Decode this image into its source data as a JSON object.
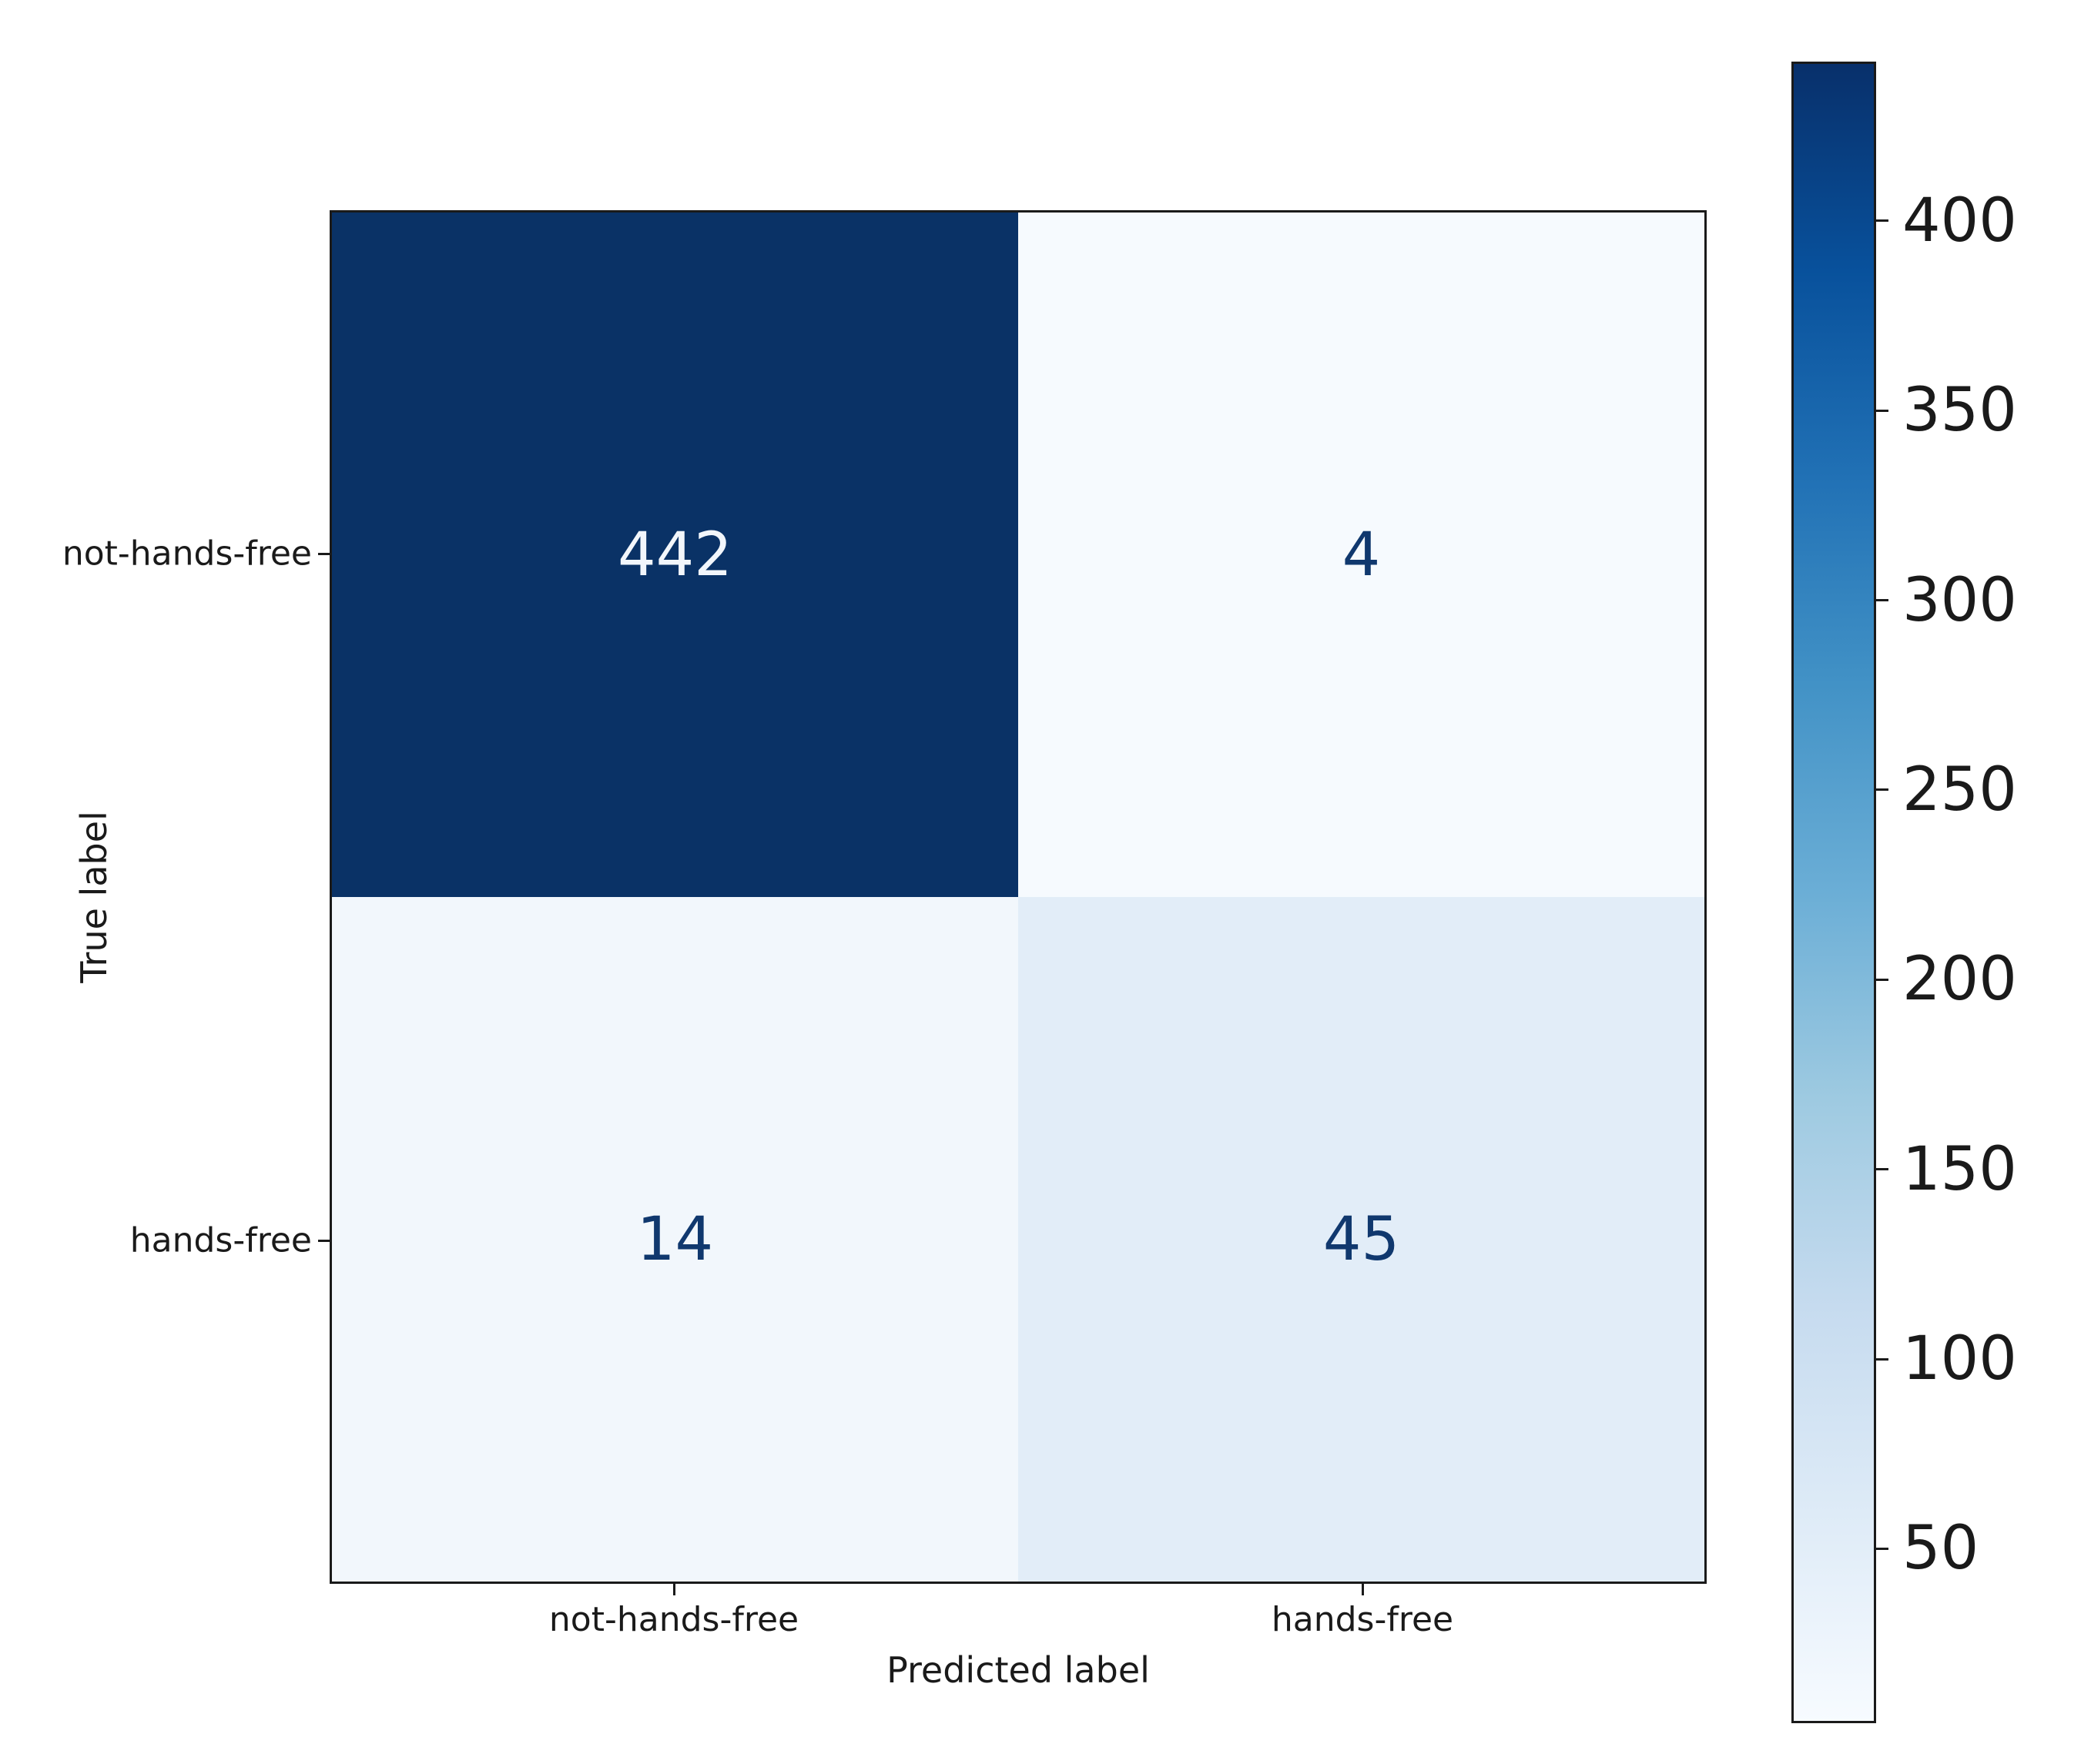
{
  "figure": {
    "background": "#ffffff",
    "axis_color": "#1a1a1a"
  },
  "chart_data": {
    "type": "heatmap",
    "subtype": "confusion-matrix",
    "title": "",
    "xlabel": "Predicted label",
    "ylabel": "True label",
    "x_tick_labels": [
      "not-hands-free",
      "hands-free"
    ],
    "y_tick_labels": [
      "not-hands-free",
      "hands-free"
    ],
    "matrix": [
      [
        442,
        4
      ],
      [
        14,
        45
      ]
    ],
    "cells": [
      {
        "row": 0,
        "col": 0,
        "value": "442",
        "bg": "#0a3266",
        "fg": "#f2f6fb"
      },
      {
        "row": 0,
        "col": 1,
        "value": "4",
        "bg": "#f6fafe",
        "fg": "#10386e"
      },
      {
        "row": 1,
        "col": 0,
        "value": "14",
        "bg": "#f2f7fc",
        "fg": "#10386e"
      },
      {
        "row": 1,
        "col": 1,
        "value": "45",
        "bg": "#e2edf8",
        "fg": "#10386e"
      }
    ],
    "colormap": "Blues",
    "vmin": 4,
    "vmax": 442,
    "grid": false,
    "legend_position": "right-colorbar",
    "colorbar": {
      "tick_values": [
        50,
        100,
        150,
        200,
        250,
        300,
        350,
        400
      ],
      "tick_labels": [
        "50",
        "100",
        "150",
        "200",
        "250",
        "300",
        "350",
        "400"
      ],
      "gradient_stops": [
        {
          "pos": 0.0,
          "color": "#08306b"
        },
        {
          "pos": 0.125,
          "color": "#08519c"
        },
        {
          "pos": 0.25,
          "color": "#2171b5"
        },
        {
          "pos": 0.375,
          "color": "#4292c6"
        },
        {
          "pos": 0.5,
          "color": "#6baed6"
        },
        {
          "pos": 0.625,
          "color": "#9ecae1"
        },
        {
          "pos": 0.75,
          "color": "#c6dbef"
        },
        {
          "pos": 0.875,
          "color": "#deebf7"
        },
        {
          "pos": 1.0,
          "color": "#f7fbff"
        }
      ]
    }
  }
}
